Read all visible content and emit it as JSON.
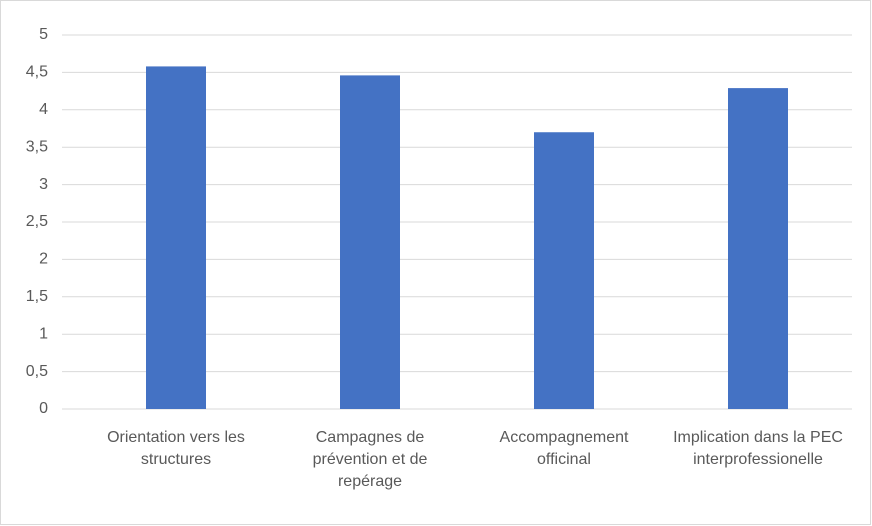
{
  "chart_data": {
    "type": "bar",
    "categories": [
      "Orientation vers les structures",
      "Campagnes de prévention et de repérage",
      "Accompagnement officinal",
      "Implication dans la PEC interprofessionelle"
    ],
    "values": [
      4.58,
      4.46,
      3.7,
      4.29
    ],
    "color": "#4472c4",
    "ylim": [
      0,
      5
    ],
    "yticks": [
      0,
      {
        "value": 0.5,
        "label": "0,5"
      },
      1,
      {
        "value": 1.5,
        "label": "1,5"
      },
      2,
      {
        "value": 2.5,
        "label": "2,5"
      },
      3,
      {
        "value": 3.5,
        "label": "3,5"
      },
      4,
      {
        "value": 4.5,
        "label": "4,5"
      },
      5
    ],
    "grid": true
  }
}
